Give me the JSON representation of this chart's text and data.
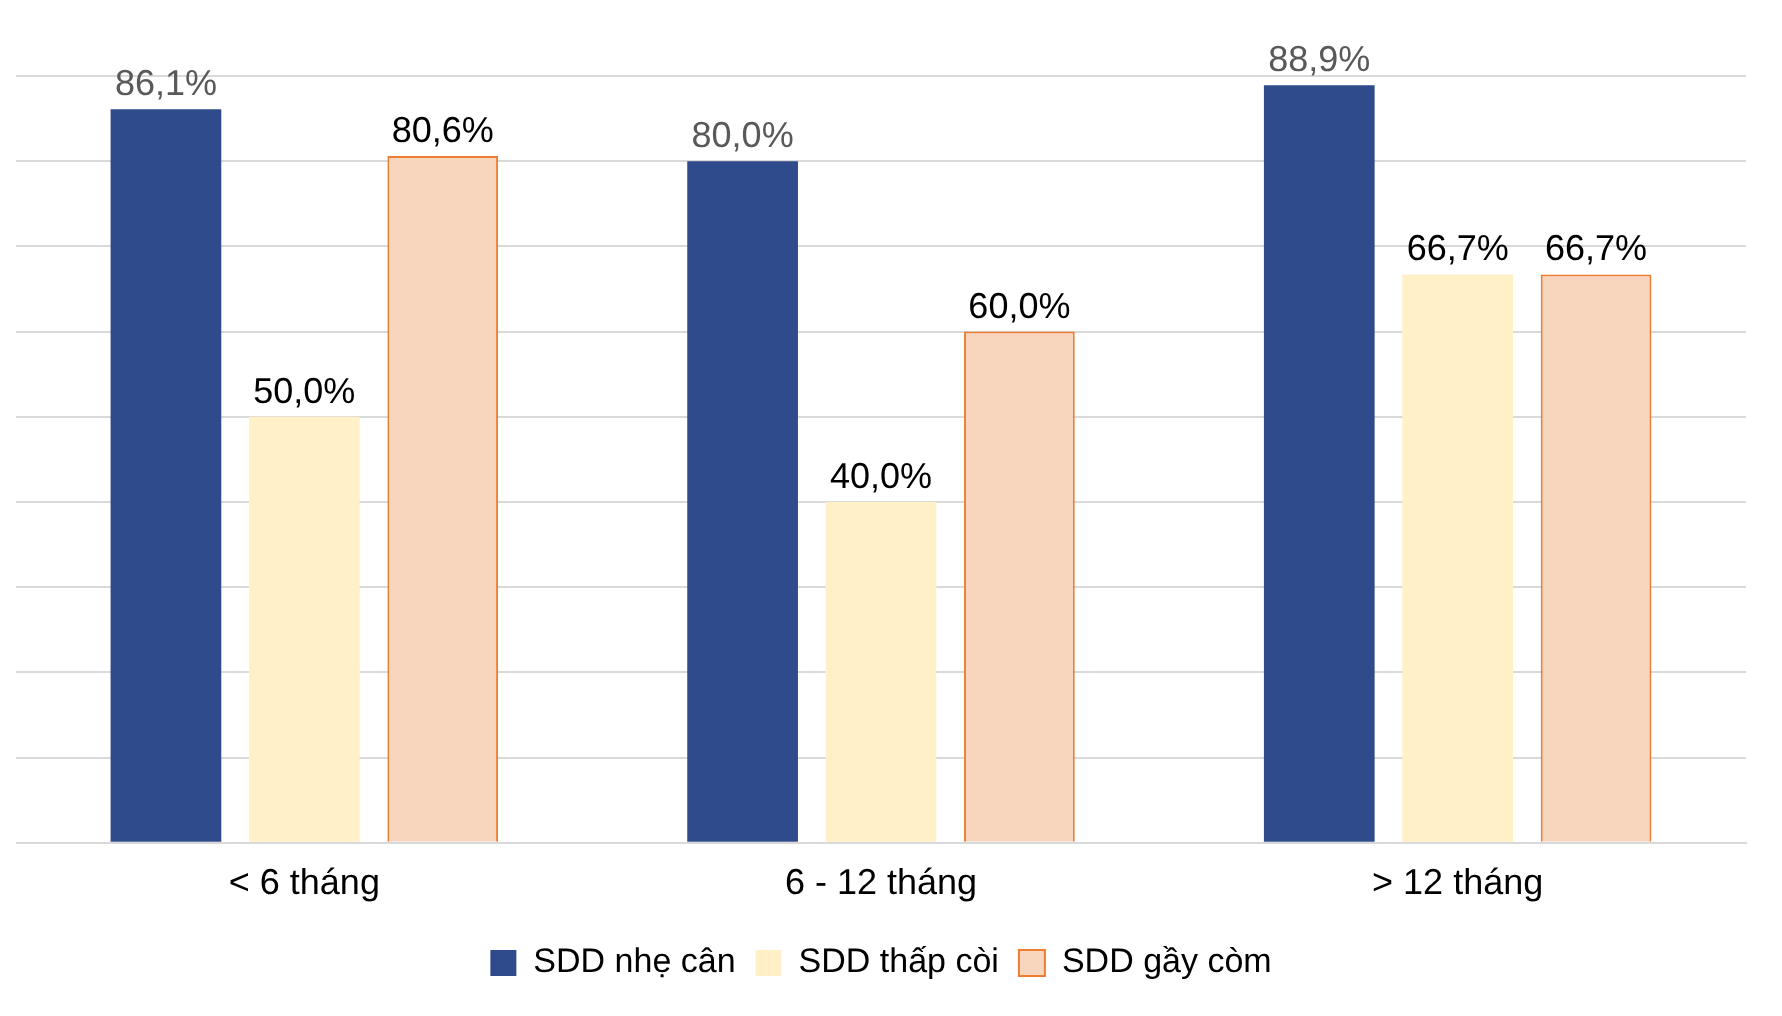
{
  "chart_data": {
    "type": "bar",
    "categories": [
      "< 6 tháng",
      "6 - 12 tháng",
      "> 12 tháng"
    ],
    "series": [
      {
        "name": "SDD nhẹ cân",
        "color": "#2f4b8c",
        "values": [
          86.1,
          80.0,
          88.9
        ],
        "value_labels": [
          "86,1%",
          "80,0%",
          "88,9%"
        ]
      },
      {
        "name": "SDD thấp còi",
        "color": "#fff0c8",
        "values": [
          50.0,
          40.0,
          66.7
        ],
        "value_labels": [
          "50,0%",
          "40,0%",
          "66,7%"
        ]
      },
      {
        "name": "SDD gầy còm",
        "color": "#f8d5bd",
        "values": [
          80.6,
          60.0,
          66.7
        ],
        "value_labels": [
          "80,6%",
          "60,0%",
          "66,7%"
        ]
      }
    ],
    "ylim": [
      0,
      90
    ],
    "yticks": [
      {
        "value": 0,
        "label": null
      },
      {
        "value": 10,
        "label": null
      },
      {
        "value": 20,
        "label": null
      },
      {
        "value": 30,
        "label": null
      },
      {
        "value": 40,
        "label": null
      },
      {
        "value": 50,
        "label": null
      },
      {
        "value": 60,
        "label": null
      },
      {
        "value": 70,
        "label": null
      },
      {
        "value": 80,
        "label": null
      },
      {
        "value": 90,
        "label": null
      }
    ],
    "tick_labels": "x",
    "grid": "y",
    "legend": "bottom"
  }
}
